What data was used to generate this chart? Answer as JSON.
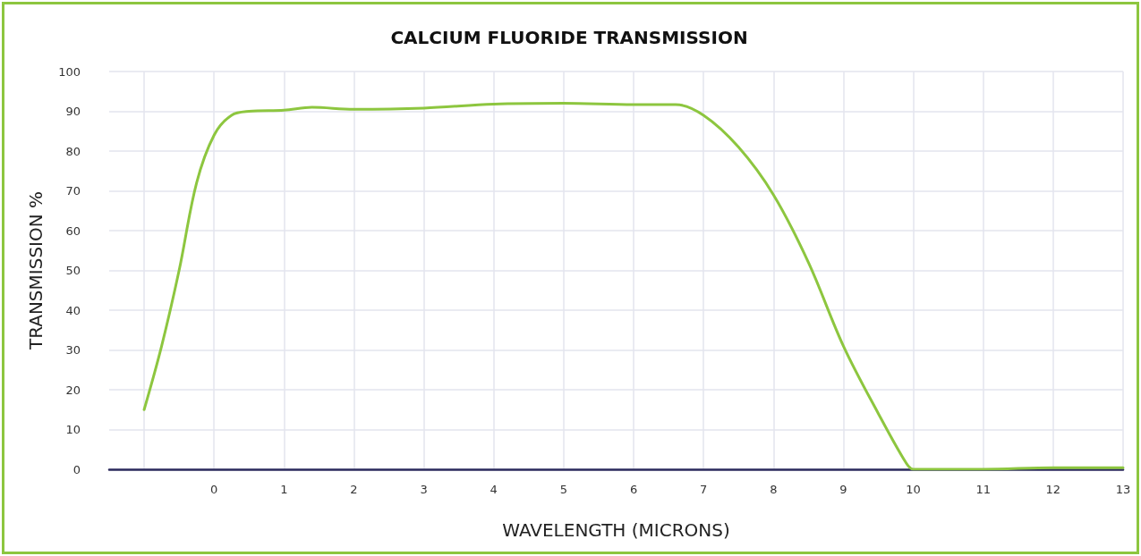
{
  "chart_data": {
    "type": "line",
    "title": "CALCIUM FLUORIDE TRANSMISSION",
    "xlabel": "WAVELENGTH (MICRONS)",
    "ylabel": "TRANSMISSION %",
    "x": [
      -1,
      -0.75,
      -0.5,
      -0.25,
      0,
      0.25,
      0.5,
      1,
      1.4,
      2,
      3,
      4,
      5,
      6,
      6.6,
      7,
      7.5,
      8,
      8.5,
      9,
      9.5,
      9.9,
      10,
      10.3,
      11,
      12,
      13
    ],
    "series": [
      {
        "color": "#8dc63f",
        "values": [
          15,
          31,
          50,
          72,
          84,
          89,
          90,
          90.3,
          91,
          90.5,
          90.8,
          91.8,
          92,
          91.7,
          91.7,
          89,
          81,
          69,
          52,
          31,
          14,
          1.5,
          0,
          0,
          0,
          0.4,
          0.4
        ]
      }
    ],
    "xlim": [
      -1.5,
      13
    ],
    "xticks": [
      {
        "value": -1,
        "label": null
      },
      0,
      1,
      2,
      3,
      4,
      5,
      6,
      7,
      8,
      9,
      10,
      11,
      12,
      13
    ],
    "ylim": [
      0,
      100
    ],
    "yticks": [
      0,
      10,
      20,
      30,
      40,
      50,
      60,
      70,
      80,
      90,
      100
    ],
    "grid": true,
    "marker": "none",
    "line_style": "solid"
  }
}
